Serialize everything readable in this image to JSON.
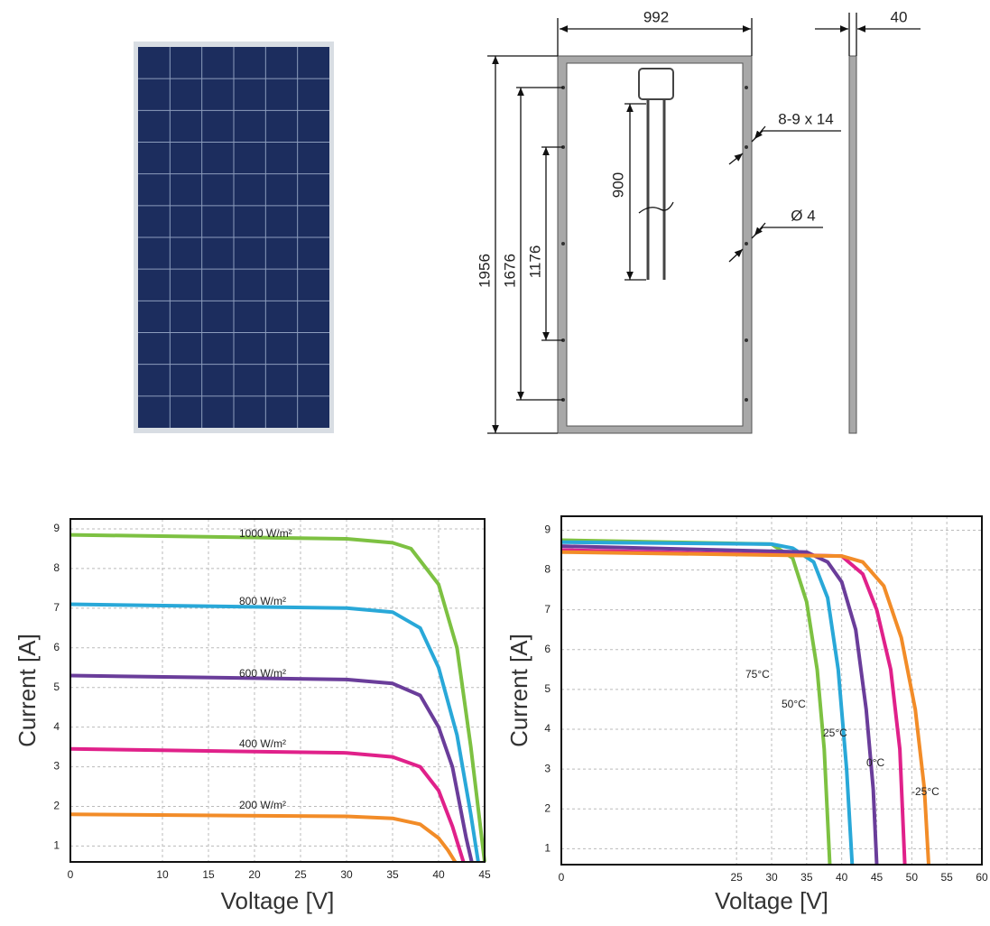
{
  "drawing": {
    "labels": [
      "992",
      "40",
      "1956",
      "1676",
      "1176",
      "900",
      "8-9 x 14",
      "Ø 4"
    ]
  },
  "chart_data": [
    {
      "type": "line",
      "x_label": "Voltage [V]",
      "y_label": "Current [A]",
      "xlim": [
        0,
        45
      ],
      "xticks": [
        0,
        10,
        15,
        20,
        25,
        30,
        35,
        40,
        45
      ],
      "ylim": [
        0.6,
        9.25
      ],
      "yticks": [
        1,
        2,
        3,
        4,
        5,
        6,
        7,
        8,
        9
      ],
      "grid": true,
      "series": [
        {
          "name": "1000 W/m²",
          "color": "#7dc142",
          "x": [
            0,
            30,
            35,
            37,
            40,
            42,
            43.5,
            45
          ],
          "values": [
            8.85,
            8.75,
            8.65,
            8.5,
            7.6,
            6,
            3.5,
            0.6
          ]
        },
        {
          "name": "800 W/m²",
          "color": "#29a8d8",
          "x": [
            0,
            30,
            35,
            38,
            40,
            42,
            43.5,
            44.3
          ],
          "values": [
            7.1,
            7,
            6.9,
            6.5,
            5.5,
            3.8,
            1.8,
            0.6
          ]
        },
        {
          "name": "600 W/m²",
          "color": "#6a3d9a",
          "x": [
            0,
            30,
            35,
            38,
            40,
            41.5,
            43,
            43.6
          ],
          "values": [
            5.3,
            5.2,
            5.1,
            4.8,
            4,
            3,
            1.2,
            0.6
          ]
        },
        {
          "name": "400 W/m²",
          "color": "#e0218a",
          "x": [
            0,
            30,
            35,
            38,
            40,
            41.5,
            42.7
          ],
          "values": [
            3.45,
            3.35,
            3.25,
            3,
            2.4,
            1.5,
            0.6
          ]
        },
        {
          "name": "200 W/m²",
          "color": "#f28c28",
          "x": [
            0,
            30,
            35,
            38,
            40,
            41,
            41.8
          ],
          "values": [
            1.8,
            1.75,
            1.7,
            1.55,
            1.2,
            0.9,
            0.6
          ]
        }
      ]
    },
    {
      "type": "line",
      "x_label": "Voltage [V]",
      "y_label": "Current [A]",
      "xlim": [
        0,
        60
      ],
      "xticks": [
        0,
        25,
        30,
        35,
        40,
        45,
        50,
        55,
        60
      ],
      "ylim": [
        0.6,
        9.35
      ],
      "yticks": [
        1,
        2,
        3,
        4,
        5,
        6,
        7,
        8,
        9
      ],
      "grid": true,
      "series": [
        {
          "name": "75°C",
          "color": "#7dc142",
          "x": [
            0,
            30,
            33,
            35,
            36.5,
            37.5,
            38.3
          ],
          "values": [
            8.75,
            8.65,
            8.3,
            7.2,
            5.5,
            3.5,
            0.6
          ]
        },
        {
          "name": "50°C",
          "color": "#29a8d8",
          "x": [
            0,
            30,
            33,
            36,
            38,
            39.5,
            40.7,
            41.5
          ],
          "values": [
            8.7,
            8.65,
            8.55,
            8.2,
            7.3,
            5.5,
            3,
            0.6
          ]
        },
        {
          "name": "25°C",
          "color": "#6a3d9a",
          "x": [
            0,
            35,
            38,
            40,
            42,
            43.5,
            44.5,
            45
          ],
          "values": [
            8.6,
            8.45,
            8.2,
            7.7,
            6.5,
            4.5,
            2.5,
            0.6
          ]
        },
        {
          "name": "0°C",
          "color": "#e0218a",
          "x": [
            0,
            40,
            43,
            45,
            47,
            48.3,
            49
          ],
          "values": [
            8.5,
            8.35,
            7.9,
            7,
            5.5,
            3.5,
            0.6
          ]
        },
        {
          "name": "-25°C",
          "color": "#f28c28",
          "x": [
            0,
            40,
            43,
            46,
            48.5,
            50.5,
            51.8,
            52.4
          ],
          "values": [
            8.45,
            8.35,
            8.2,
            7.6,
            6.3,
            4.5,
            2.5,
            0.6
          ]
        }
      ]
    }
  ]
}
